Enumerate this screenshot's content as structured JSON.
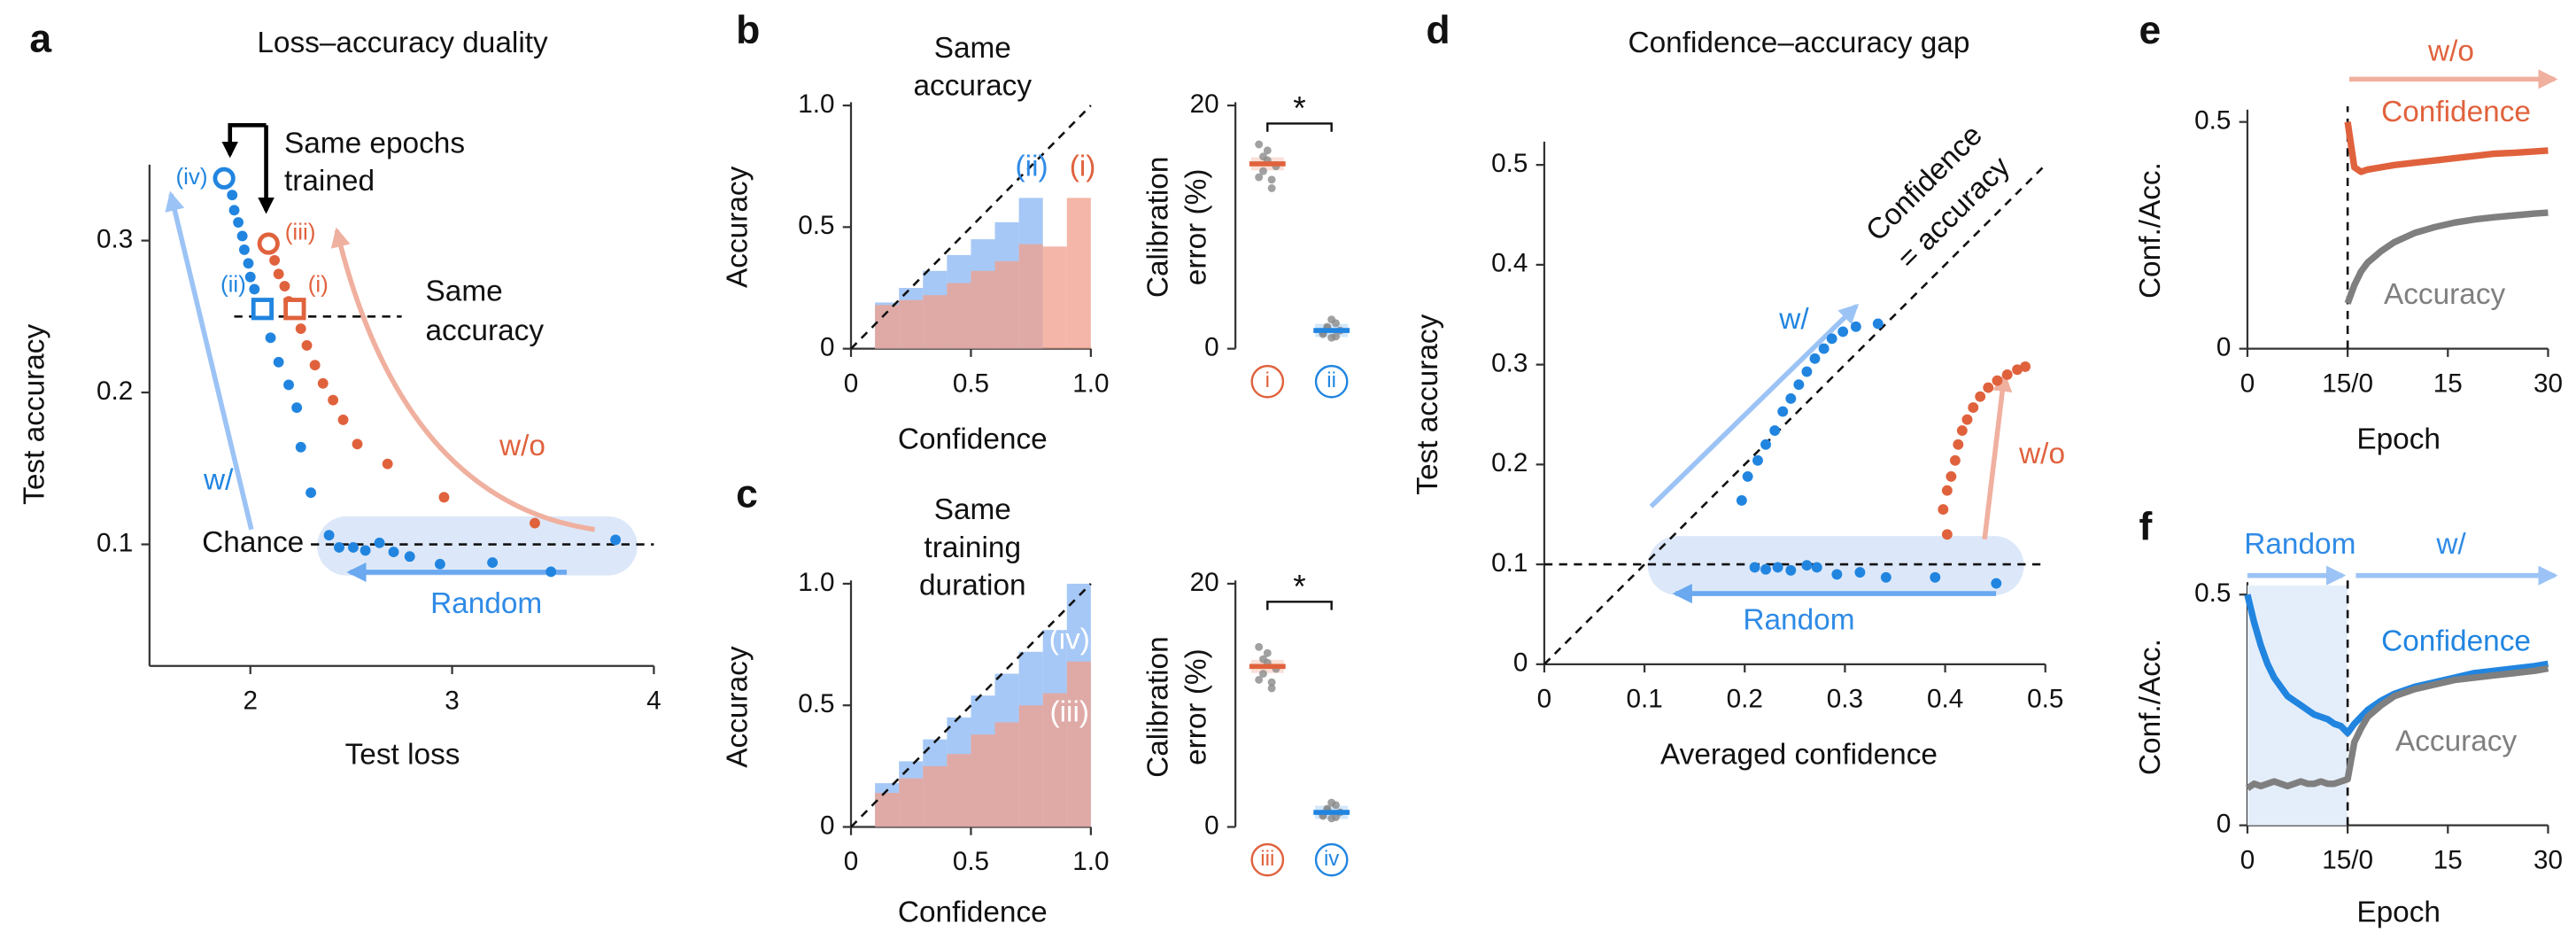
{
  "chart_data": [
    {
      "panel": "a",
      "type": "scatter",
      "title": "Loss–accuracy duality",
      "xlabel": "Test loss",
      "ylabel": "Test accuracy",
      "xlim": [
        1.5,
        4
      ],
      "ylim": [
        0.02,
        0.35
      ],
      "xticks": [
        2,
        3,
        4
      ],
      "yticks": [
        0.1,
        0.2,
        0.3
      ],
      "series": [
        {
          "name": "w/",
          "color": "#2185e0",
          "x": [
            1.87,
            1.91,
            1.92,
            1.94,
            1.96,
            1.97,
            1.99,
            2.0,
            2.02,
            2.05,
            2.1,
            2.14,
            2.19,
            2.23,
            2.25,
            2.3,
            2.39,
            2.44,
            2.51,
            2.57,
            2.64,
            2.71,
            2.79,
            2.94,
            3.2,
            3.49,
            3.81
          ],
          "values": [
            0.341,
            0.33,
            0.32,
            0.312,
            0.303,
            0.294,
            0.285,
            0.276,
            0.268,
            0.252,
            0.236,
            0.22,
            0.205,
            0.19,
            0.164,
            0.134,
            0.106,
            0.098,
            0.098,
            0.096,
            0.101,
            0.095,
            0.092,
            0.087,
            0.088,
            0.082,
            0.103
          ]
        },
        {
          "name": "w/o",
          "color": "#e0623d",
          "x": [
            2.09,
            2.12,
            2.14,
            2.17,
            2.19,
            2.22,
            2.25,
            2.28,
            2.32,
            2.36,
            2.41,
            2.46,
            2.53,
            2.68,
            2.96,
            3.41
          ],
          "values": [
            0.298,
            0.287,
            0.278,
            0.27,
            0.26,
            0.252,
            0.242,
            0.231,
            0.218,
            0.206,
            0.195,
            0.182,
            0.166,
            0.153,
            0.131,
            0.114
          ]
        }
      ],
      "markers": [
        {
          "label": "(iv)",
          "x": 1.87,
          "y": 0.341,
          "shape": "circle",
          "color": "#2185e0"
        },
        {
          "label": "(iii)",
          "x": 2.09,
          "y": 0.298,
          "shape": "circle",
          "color": "#e0623d"
        },
        {
          "label": "(ii)",
          "x": 2.06,
          "y": 0.255,
          "shape": "square",
          "color": "#2185e0"
        },
        {
          "label": "(i)",
          "x": 2.22,
          "y": 0.255,
          "shape": "square",
          "color": "#e0623d"
        }
      ],
      "hlines": [
        {
          "y": 0.25,
          "x": [
            1.92,
            2.75
          ]
        },
        {
          "y": 0.1,
          "x": [
            2.3,
            4
          ]
        }
      ],
      "annotations": [
        "Same epochs",
        "trained",
        "Same",
        "accuracy",
        "Chance",
        "Random"
      ]
    },
    {
      "panel": "b",
      "type": "histogram",
      "title": [
        "Same",
        "accuracy"
      ],
      "xlabel": "Confidence",
      "ylabel": "Accuracy",
      "xlim": [
        0,
        1
      ],
      "ylim": [
        0,
        1
      ],
      "xticks": [
        0,
        0.5,
        {
          "value": 1,
          "label": "1.0"
        }
      ],
      "yticks": [
        0,
        0.5,
        {
          "value": 1,
          "label": "1.0"
        }
      ],
      "diagonal": true,
      "bins": [
        0.1,
        0.2,
        0.3,
        0.4,
        0.5,
        0.6,
        0.7,
        0.8,
        0.9,
        1.0
      ],
      "series": [
        {
          "name": "(ii)",
          "color": "#8db8f4",
          "values": [
            0.19,
            0.25,
            0.32,
            0.385,
            0.45,
            0.52,
            0.62,
            null,
            null
          ]
        },
        {
          "name": "(i)",
          "color": "#f0a28f",
          "values": [
            0.18,
            0.2,
            0.22,
            0.27,
            0.32,
            0.36,
            0.43,
            0.42,
            0.62
          ]
        }
      ]
    },
    {
      "type": "dotplot",
      "ylabel": [
        "Calibration",
        "error (%)"
      ],
      "ylim": [
        0,
        20
      ],
      "yticks": [
        0,
        20
      ],
      "categories": [
        "i",
        "ii"
      ],
      "colors": [
        "#e0623d",
        "#2185e0"
      ],
      "values": [
        15.2,
        1.5
      ],
      "points": [
        [
          14.1,
          15.8,
          16.3,
          13.9,
          15.0,
          16.8,
          14.6,
          15.5,
          13.2
        ],
        [
          1.2,
          1.8,
          0.9,
          2.1,
          1.5,
          1.3,
          1.7,
          2.4,
          1.0
        ]
      ],
      "significance": "*"
    },
    {
      "panel": "c",
      "type": "histogram",
      "title": [
        "Same",
        "training",
        "duration"
      ],
      "xlabel": "Confidence",
      "ylabel": "Accuracy",
      "xlim": [
        0,
        1
      ],
      "ylim": [
        0,
        1
      ],
      "xticks": [
        0,
        0.5,
        {
          "value": 1,
          "label": "1.0"
        }
      ],
      "yticks": [
        0,
        0.5,
        {
          "value": 1,
          "label": "1.0"
        }
      ],
      "diagonal": true,
      "bins": [
        0.1,
        0.2,
        0.3,
        0.4,
        0.5,
        0.6,
        0.7,
        0.8,
        0.9,
        1.0
      ],
      "series": [
        {
          "name": "(iv)",
          "color": "#8db8f4",
          "values": [
            0.18,
            0.27,
            0.36,
            0.45,
            0.54,
            0.63,
            0.72,
            0.81,
            1.0
          ]
        },
        {
          "name": "(iii)",
          "color": "#f0a28f",
          "values": [
            0.14,
            0.2,
            0.25,
            0.3,
            0.38,
            0.43,
            0.5,
            0.55,
            0.68
          ]
        }
      ]
    },
    {
      "type": "dotplot",
      "ylabel": [
        "Calibration",
        "error (%)"
      ],
      "ylim": [
        0,
        20
      ],
      "yticks": [
        0,
        20
      ],
      "categories": [
        "iii",
        "iv"
      ],
      "colors": [
        "#e0623d",
        "#2185e0"
      ],
      "values": [
        13.2,
        1.2
      ],
      "points": [
        [
          12.1,
          13.8,
          14.3,
          11.9,
          13.0,
          14.8,
          12.6,
          13.5,
          11.4
        ],
        [
          0.9,
          1.4,
          0.7,
          1.8,
          1.2,
          1.0,
          1.5,
          2.0,
          0.8
        ]
      ],
      "significance": "*"
    },
    {
      "panel": "d",
      "type": "scatter",
      "title": "Confidence–accuracy gap",
      "xlabel": "Averaged confidence",
      "ylabel": "Test accuracy",
      "xlim": [
        0,
        0.5
      ],
      "ylim": [
        0,
        0.52
      ],
      "xticks": [
        0,
        0.1,
        0.2,
        0.3,
        0.4,
        0.5
      ],
      "yticks": [
        0,
        0.1,
        0.2,
        0.3,
        0.4,
        0.5
      ],
      "diagonal": true,
      "hlines": [
        {
          "y": 0.1,
          "x": [
            0,
            0.5
          ]
        }
      ],
      "series": [
        {
          "name": "w/",
          "color": "#2185e0",
          "x": [
            0.197,
            0.203,
            0.213,
            0.221,
            0.23,
            0.238,
            0.246,
            0.254,
            0.262,
            0.27,
            0.279,
            0.287,
            0.298,
            0.311,
            0.333,
            0.21,
            0.221,
            0.233,
            0.246,
            0.262,
            0.272,
            0.292,
            0.315,
            0.341,
            0.39,
            0.451
          ],
          "values": [
            0.164,
            0.188,
            0.204,
            0.22,
            0.234,
            0.253,
            0.266,
            0.28,
            0.293,
            0.306,
            0.316,
            0.326,
            0.333,
            0.338,
            0.341,
            0.097,
            0.095,
            0.097,
            0.094,
            0.099,
            0.097,
            0.09,
            0.092,
            0.087,
            0.087,
            0.081
          ]
        },
        {
          "name": "w/o",
          "color": "#e0623d",
          "x": [
            0.402,
            0.398,
            0.402,
            0.406,
            0.41,
            0.413,
            0.417,
            0.422,
            0.428,
            0.435,
            0.443,
            0.452,
            0.462,
            0.472,
            0.48
          ],
          "values": [
            0.13,
            0.155,
            0.174,
            0.188,
            0.204,
            0.22,
            0.234,
            0.245,
            0.257,
            0.268,
            0.277,
            0.284,
            0.29,
            0.295,
            0.298
          ]
        }
      ],
      "annotations": [
        "Confidence",
        "= accuracy",
        "Random"
      ]
    },
    {
      "panel": "e",
      "type": "line",
      "xlabel": "Epoch",
      "ylabel": "Conf./Acc.",
      "xlim": [
        0,
        45
      ],
      "ylim": [
        0,
        0.52
      ],
      "xticks": [
        0,
        {
          "value": 15,
          "label": "15/0"
        },
        {
          "value": 30,
          "label": "15"
        },
        {
          "value": 45,
          "label": "30"
        }
      ],
      "yticks": [
        0,
        0.5
      ],
      "vline": 15,
      "x": [
        15,
        16,
        17,
        18,
        20,
        22,
        25,
        28,
        31,
        34,
        37,
        40,
        43,
        45
      ],
      "series": [
        {
          "name": "Confidence",
          "color": "#e0623d",
          "values": [
            0.5,
            0.4,
            0.39,
            0.395,
            0.4,
            0.405,
            0.41,
            0.415,
            0.42,
            0.425,
            0.43,
            0.432,
            0.435,
            0.437
          ]
        },
        {
          "name": "Accuracy",
          "color": "#7f7f7f",
          "values": [
            0.1,
            0.14,
            0.17,
            0.19,
            0.215,
            0.235,
            0.255,
            0.268,
            0.278,
            0.285,
            0.29,
            0.294,
            0.298,
            0.3
          ]
        }
      ],
      "annotations": [
        "w/o"
      ]
    },
    {
      "panel": "f",
      "type": "line",
      "xlabel": "Epoch",
      "ylabel": "Conf./Acc.",
      "xlim": [
        0,
        45
      ],
      "ylim": [
        0,
        0.52
      ],
      "xticks": [
        0,
        {
          "value": 15,
          "label": "15/0"
        },
        {
          "value": 30,
          "label": "15"
        },
        {
          "value": 45,
          "label": "30"
        }
      ],
      "yticks": [
        0,
        0.5
      ],
      "vline": 15,
      "shade": [
        0,
        15
      ],
      "x": [
        0,
        1,
        2,
        3,
        4,
        5,
        6,
        7,
        8,
        9,
        10,
        11,
        12,
        13,
        14,
        15,
        16,
        17,
        18,
        20,
        22,
        25,
        28,
        31,
        34,
        37,
        40,
        43,
        45
      ],
      "series": [
        {
          "name": "Confidence",
          "color": "#2185e0",
          "values": [
            0.5,
            0.44,
            0.39,
            0.35,
            0.32,
            0.3,
            0.28,
            0.27,
            0.26,
            0.25,
            0.24,
            0.235,
            0.23,
            0.22,
            0.215,
            0.2,
            0.22,
            0.235,
            0.25,
            0.27,
            0.285,
            0.3,
            0.31,
            0.32,
            0.33,
            0.335,
            0.34,
            0.345,
            0.35
          ]
        },
        {
          "name": "Accuracy",
          "color": "#7f7f7f",
          "values": [
            0.08,
            0.09,
            0.085,
            0.09,
            0.095,
            0.09,
            0.085,
            0.09,
            0.095,
            0.09,
            0.09,
            0.095,
            0.09,
            0.09,
            0.095,
            0.1,
            0.18,
            0.21,
            0.235,
            0.26,
            0.28,
            0.295,
            0.305,
            0.315,
            0.32,
            0.325,
            0.33,
            0.335,
            0.34
          ]
        }
      ],
      "annotations": [
        "Random",
        "w/"
      ]
    }
  ]
}
